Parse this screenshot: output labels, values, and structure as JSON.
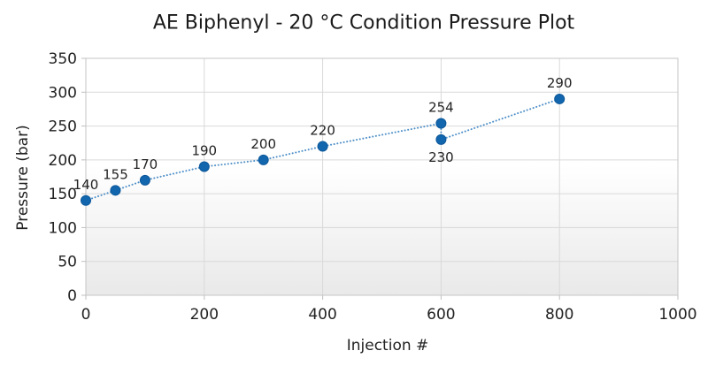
{
  "chart_data": {
    "type": "scatter",
    "title": "AE Biphenyl - 20 °C Condition Pressure Plot",
    "xlabel": "Injection #",
    "ylabel": "Pressure (bar)",
    "xlim": [
      0,
      1000
    ],
    "ylim": [
      0,
      350
    ],
    "x_ticks": [
      0,
      200,
      400,
      600,
      800,
      1000
    ],
    "y_ticks": [
      0,
      50,
      100,
      150,
      200,
      250,
      300,
      350
    ],
    "grid": true,
    "legend": "none",
    "line_style": "dotted",
    "marker_color": "#1266ad",
    "marker_edge_color": "#0b579a",
    "line_color": "#4f90c8",
    "gridline_color": "#d9d9d9",
    "border_color": "#c6c6c6",
    "tick_color": "#bfbfbf",
    "text_color": "#222222",
    "plot_bg_top": "#ffffff",
    "plot_bg_bottom": "#e9e9e9",
    "points": [
      {
        "x": 0,
        "y": 140,
        "label": "140",
        "label_pos": "above"
      },
      {
        "x": 50,
        "y": 155,
        "label": "155",
        "label_pos": "above"
      },
      {
        "x": 100,
        "y": 170,
        "label": "170",
        "label_pos": "above"
      },
      {
        "x": 200,
        "y": 190,
        "label": "190",
        "label_pos": "above"
      },
      {
        "x": 300,
        "y": 200,
        "label": "200",
        "label_pos": "above"
      },
      {
        "x": 400,
        "y": 220,
        "label": "220",
        "label_pos": "above"
      },
      {
        "x": 600,
        "y": 254,
        "label": "254",
        "label_pos": "above"
      },
      {
        "x": 600,
        "y": 230,
        "label": "230",
        "label_pos": "below"
      },
      {
        "x": 800,
        "y": 290,
        "label": "290",
        "label_pos": "above"
      }
    ]
  }
}
